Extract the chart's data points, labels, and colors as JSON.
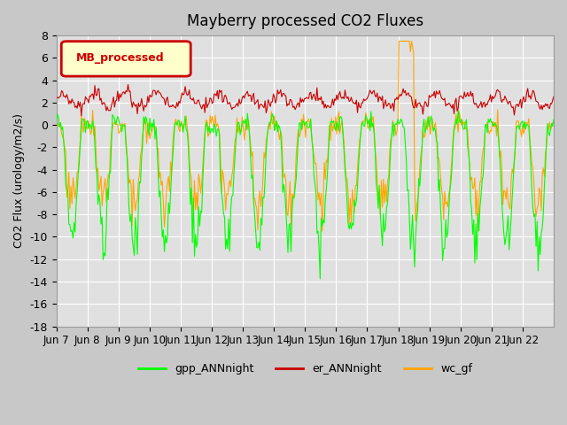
{
  "title": "Mayberry processed CO2 Fluxes",
  "ylabel": "CO2 Flux (urology/m2/s)",
  "ylim": [
    -18,
    8
  ],
  "yticks": [
    8,
    6,
    4,
    2,
    0,
    -2,
    -4,
    -6,
    -8,
    -10,
    -12,
    -14,
    -16,
    -18
  ],
  "x_labels": [
    "Jun 7",
    "Jun 8",
    "Jun 9",
    "Jun 10",
    "Jun 11",
    "Jun 12",
    "Jun 13",
    "Jun 14",
    "Jun 15",
    "Jun 16",
    "Jun 17",
    "Jun 18",
    "Jun 19",
    "Jun 20",
    "Jun 21",
    "Jun 22"
  ],
  "fig_bg_color": "#c8c8c8",
  "plot_bg_color": "#e0e0e0",
  "legend_box_label": "MB_processed",
  "legend_box_color": "#cc0000",
  "legend_box_bg": "#ffffcc",
  "line_green": "#00ff00",
  "line_red": "#cc0000",
  "line_orange": "#ffa500",
  "legend_labels": [
    "gpp_ANNnight",
    "er_ANNnight",
    "wc_gf"
  ],
  "n_points": 480,
  "days": 16
}
